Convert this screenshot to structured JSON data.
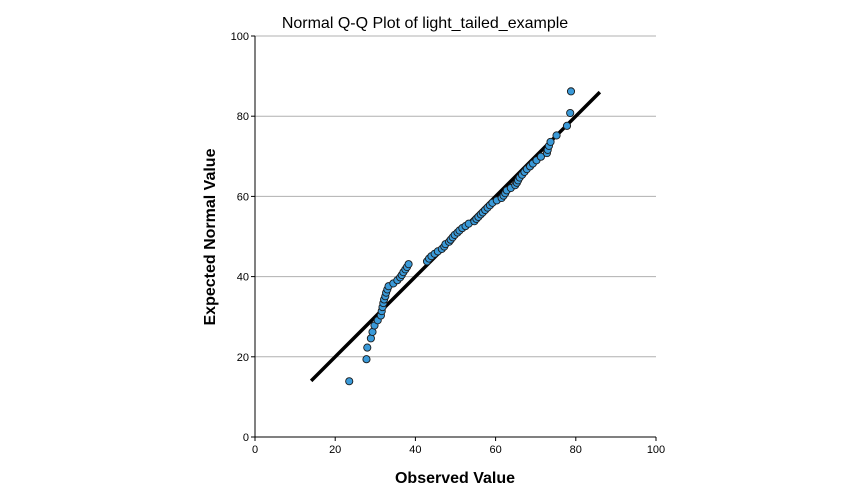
{
  "chart_data": {
    "type": "scatter",
    "title": "Normal Q-Q Plot of light_tailed_example",
    "xlabel": "Observed Value",
    "ylabel": "Expected Normal Value",
    "xlim": [
      0,
      100
    ],
    "ylim": [
      0,
      100
    ],
    "xticks": [
      "0",
      "20",
      "40",
      "60",
      "80",
      "100"
    ],
    "yticks": [
      "0",
      "20",
      "40",
      "60",
      "80",
      "100"
    ],
    "grid": "horizontal",
    "legend": "none",
    "colors": {
      "points": "#3a9ad9",
      "point_edge": "#1a1a1a",
      "line": "#000000",
      "grid": "#b0b0b0"
    },
    "reference_line": {
      "x": [
        14,
        86
      ],
      "y": [
        14,
        86
      ]
    },
    "series": [
      {
        "points": [
          [
            23.5,
            13.9
          ],
          [
            27.8,
            19.4
          ],
          [
            28.0,
            22.3
          ],
          [
            28.9,
            24.6
          ],
          [
            29.3,
            26.2
          ],
          [
            29.8,
            27.8
          ],
          [
            30.6,
            29.1
          ],
          [
            31.4,
            30.3
          ],
          [
            31.6,
            31.4
          ],
          [
            31.8,
            32.4
          ],
          [
            32.0,
            33.4
          ],
          [
            32.2,
            34.3
          ],
          [
            32.5,
            35.1
          ],
          [
            32.7,
            36.0
          ],
          [
            33.0,
            36.8
          ],
          [
            33.3,
            37.6
          ],
          [
            34.5,
            38.3
          ],
          [
            35.5,
            39.1
          ],
          [
            36.2,
            39.8
          ],
          [
            36.6,
            40.4
          ],
          [
            37.0,
            41.1
          ],
          [
            37.5,
            41.8
          ],
          [
            37.9,
            42.4
          ],
          [
            38.3,
            43.1
          ],
          [
            42.9,
            43.8
          ],
          [
            43.4,
            44.5
          ],
          [
            44.0,
            45.1
          ],
          [
            44.8,
            45.7
          ],
          [
            45.6,
            46.3
          ],
          [
            46.6,
            46.9
          ],
          [
            47.2,
            47.5
          ],
          [
            47.5,
            48.1
          ],
          [
            48.4,
            48.7
          ],
          [
            48.8,
            49.2
          ],
          [
            49.3,
            49.8
          ],
          [
            49.8,
            50.4
          ],
          [
            50.5,
            51.0
          ],
          [
            51.0,
            51.5
          ],
          [
            51.7,
            52.1
          ],
          [
            52.5,
            52.6
          ],
          [
            53.3,
            53.2
          ],
          [
            54.7,
            53.8
          ],
          [
            55.2,
            54.4
          ],
          [
            55.7,
            54.9
          ],
          [
            56.3,
            55.5
          ],
          [
            56.8,
            56.0
          ],
          [
            57.4,
            56.6
          ],
          [
            58.0,
            57.2
          ],
          [
            58.6,
            57.8
          ],
          [
            59.2,
            58.4
          ],
          [
            60.3,
            59.0
          ],
          [
            61.5,
            59.6
          ],
          [
            62.0,
            60.2
          ],
          [
            62.4,
            60.8
          ],
          [
            62.8,
            61.5
          ],
          [
            63.8,
            62.1
          ],
          [
            64.9,
            62.8
          ],
          [
            65.3,
            63.4
          ],
          [
            65.6,
            64.0
          ],
          [
            66.0,
            64.7
          ],
          [
            66.6,
            65.4
          ],
          [
            67.2,
            66.1
          ],
          [
            67.8,
            66.8
          ],
          [
            68.6,
            67.5
          ],
          [
            69.3,
            68.2
          ],
          [
            70.2,
            69.0
          ],
          [
            71.3,
            69.9
          ],
          [
            72.8,
            70.8
          ],
          [
            73.0,
            71.6
          ],
          [
            73.3,
            72.6
          ],
          [
            73.7,
            73.6
          ],
          [
            75.2,
            75.2
          ],
          [
            77.8,
            77.6
          ],
          [
            78.6,
            80.8
          ],
          [
            78.8,
            86.2
          ]
        ]
      }
    ]
  }
}
